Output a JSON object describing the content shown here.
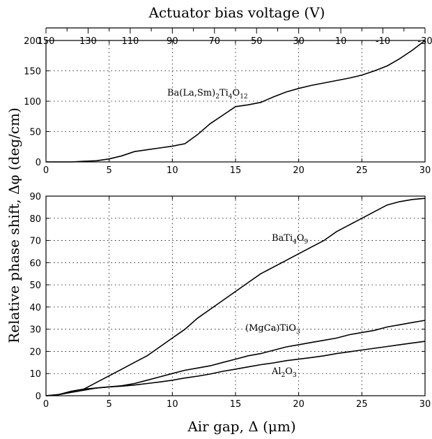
{
  "chart_data": [
    {
      "type": "line",
      "id": "top",
      "top_axis": {
        "label": "Actuator bias voltage (V)",
        "ticks": [
          "150",
          "130",
          "110",
          "90",
          "70",
          "50",
          "30",
          "10",
          "-10",
          "-30"
        ],
        "range": [
          150,
          -30
        ]
      },
      "xlim": [
        0,
        30
      ],
      "x_ticks": [
        "0",
        "5",
        "10",
        "15",
        "20",
        "25",
        "30"
      ],
      "ylim": [
        0,
        200
      ],
      "y_ticks": [
        "0",
        "50",
        "100",
        "150",
        "200"
      ],
      "grid": true,
      "series": [
        {
          "name": "Ba(La,Sm)2Ti4O12",
          "x": [
            0,
            2,
            3,
            4,
            5,
            6,
            7,
            8,
            9,
            10,
            11,
            12,
            13,
            14,
            15,
            16,
            17,
            18,
            19,
            20,
            21,
            22,
            23,
            24,
            25,
            26,
            27,
            28,
            29,
            30
          ],
          "y": [
            0,
            0,
            1,
            2,
            5,
            10,
            17,
            20,
            23,
            26,
            30,
            45,
            63,
            77,
            91,
            94,
            98,
            107,
            115,
            121,
            126,
            130,
            134,
            138,
            143,
            150,
            158,
            170,
            184,
            200
          ]
        }
      ]
    },
    {
      "type": "line",
      "id": "bottom",
      "xlabel": "Air gap, Δ (μm)",
      "ylabel": "Relative phase shift, Δφ (deg/cm)",
      "xlim": [
        0,
        30
      ],
      "x_ticks": [
        "0",
        "5",
        "10",
        "15",
        "20",
        "25",
        "30"
      ],
      "ylim": [
        0,
        90
      ],
      "y_ticks": [
        "0",
        "10",
        "20",
        "30",
        "40",
        "50",
        "60",
        "70",
        "80",
        "90"
      ],
      "grid": true,
      "series": [
        {
          "name": "BaTi4O9",
          "x": [
            0,
            1,
            2,
            3,
            4,
            5,
            6,
            7,
            8,
            9,
            10,
            11,
            12,
            13,
            14,
            15,
            16,
            17,
            18,
            19,
            20,
            21,
            22,
            23,
            24,
            25,
            26,
            27,
            28,
            29,
            30
          ],
          "y": [
            0,
            0.5,
            2,
            3,
            6,
            9,
            12,
            15,
            18,
            22,
            26,
            30,
            35,
            39,
            43,
            47,
            51,
            55,
            58,
            61,
            64,
            67,
            70,
            74,
            77,
            80,
            83,
            86,
            87.5,
            88.5,
            89
          ]
        },
        {
          "name": "(MgCa)TiO3",
          "x": [
            0,
            1,
            2,
            3,
            4,
            5,
            6,
            7,
            8,
            9,
            10,
            11,
            12,
            13,
            14,
            15,
            16,
            17,
            18,
            19,
            20,
            21,
            22,
            23,
            24,
            25,
            26,
            27,
            28,
            29,
            30
          ],
          "y": [
            0,
            0.5,
            1.5,
            2.5,
            3.5,
            4,
            4.5,
            5.5,
            7,
            8.5,
            10,
            11.5,
            12.5,
            13.5,
            15,
            16.5,
            18,
            19,
            20.5,
            22,
            23,
            24,
            25,
            26,
            27.5,
            28.5,
            29.5,
            31,
            32,
            33,
            34
          ]
        },
        {
          "name": "Al2O3",
          "x": [
            0,
            1,
            2,
            3,
            4,
            5,
            6,
            7,
            8,
            9,
            10,
            11,
            12,
            13,
            14,
            15,
            16,
            17,
            18,
            19,
            20,
            21,
            22,
            23,
            24,
            25,
            26,
            27,
            28,
            29,
            30
          ],
          "y": [
            0,
            0.5,
            2,
            3,
            3.5,
            4,
            4.3,
            4.8,
            5.5,
            6.2,
            7,
            8,
            8.8,
            9.8,
            11,
            12,
            13,
            14,
            14.8,
            15.8,
            16.5,
            17.2,
            18,
            19,
            19.8,
            20.6,
            21.4,
            22.2,
            23,
            23.8,
            24.5
          ]
        }
      ]
    }
  ],
  "labels": {
    "top_series": {
      "base": "Ba(La,Sm)",
      "s1": "2",
      "mid": "Ti",
      "s2": "4",
      "mid2": "O",
      "s3": "12"
    },
    "batio": {
      "base": "BaTi",
      "s1": "4",
      "mid": "O",
      "s2": "9"
    },
    "mgca": {
      "base": "(MgCa)TiO",
      "s1": "3"
    },
    "al2o3": {
      "base": "Al",
      "s1": "2",
      "mid": "O",
      "s2": "3"
    }
  },
  "colors": {
    "line": "#000000",
    "background": "#ffffff"
  }
}
